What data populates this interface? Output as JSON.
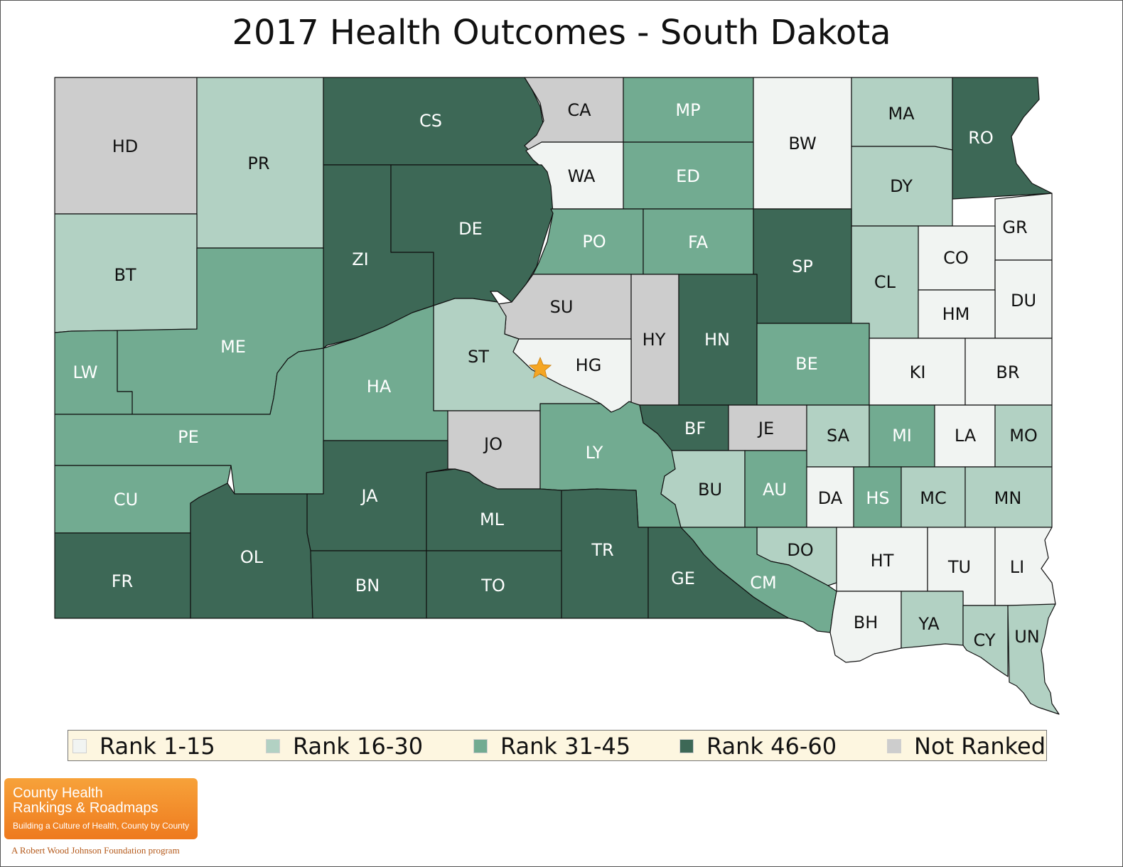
{
  "title": "2017 Health Outcomes - South Dakota",
  "colors": {
    "rank_1_15": "#f1f4f2",
    "rank_16_30": "#b2d1c3",
    "rank_31_45": "#72ab91",
    "rank_46_60": "#3d6856",
    "not_ranked": "#cdcdcd",
    "border": "#111111",
    "star": "#f5a623"
  },
  "legend": [
    {
      "key": "rank_1_15",
      "label": "Rank 1-15"
    },
    {
      "key": "rank_16_30",
      "label": "Rank 16-30"
    },
    {
      "key": "rank_31_45",
      "label": "Rank 31-45"
    },
    {
      "key": "rank_46_60",
      "label": "Rank 46-60"
    },
    {
      "key": "not_ranked",
      "label": "Not Ranked"
    }
  ],
  "counties": [
    {
      "code": "HD",
      "rank": "not_ranked"
    },
    {
      "code": "PR",
      "rank": "rank_16_30"
    },
    {
      "code": "CS",
      "rank": "rank_46_60"
    },
    {
      "code": "CA",
      "rank": "not_ranked"
    },
    {
      "code": "MP",
      "rank": "rank_31_45"
    },
    {
      "code": "BW",
      "rank": "rank_1_15"
    },
    {
      "code": "MA",
      "rank": "rank_16_30"
    },
    {
      "code": "RO",
      "rank": "rank_46_60"
    },
    {
      "code": "WA",
      "rank": "rank_1_15"
    },
    {
      "code": "ED",
      "rank": "rank_31_45"
    },
    {
      "code": "DY",
      "rank": "rank_16_30"
    },
    {
      "code": "BT",
      "rank": "rank_16_30"
    },
    {
      "code": "ZI",
      "rank": "rank_46_60"
    },
    {
      "code": "DE",
      "rank": "rank_46_60"
    },
    {
      "code": "PO",
      "rank": "rank_31_45"
    },
    {
      "code": "FA",
      "rank": "rank_31_45"
    },
    {
      "code": "SP",
      "rank": "rank_46_60"
    },
    {
      "code": "GR",
      "rank": "rank_1_15"
    },
    {
      "code": "CO",
      "rank": "rank_1_15"
    },
    {
      "code": "CL",
      "rank": "rank_16_30"
    },
    {
      "code": "DU",
      "rank": "rank_1_15"
    },
    {
      "code": "HM",
      "rank": "rank_1_15"
    },
    {
      "code": "SU",
      "rank": "not_ranked"
    },
    {
      "code": "HY",
      "rank": "not_ranked"
    },
    {
      "code": "HN",
      "rank": "rank_46_60"
    },
    {
      "code": "ME",
      "rank": "rank_31_45"
    },
    {
      "code": "LW",
      "rank": "rank_31_45"
    },
    {
      "code": "ST",
      "rank": "rank_16_30"
    },
    {
      "code": "HG",
      "rank": "rank_1_15"
    },
    {
      "code": "BE",
      "rank": "rank_31_45"
    },
    {
      "code": "KI",
      "rank": "rank_1_15"
    },
    {
      "code": "BR",
      "rank": "rank_1_15"
    },
    {
      "code": "HA",
      "rank": "rank_31_45"
    },
    {
      "code": "PE",
      "rank": "rank_31_45"
    },
    {
      "code": "JO",
      "rank": "not_ranked"
    },
    {
      "code": "LY",
      "rank": "rank_31_45"
    },
    {
      "code": "BF",
      "rank": "rank_46_60"
    },
    {
      "code": "JE",
      "rank": "not_ranked"
    },
    {
      "code": "SA",
      "rank": "rank_16_30"
    },
    {
      "code": "MI",
      "rank": "rank_31_45"
    },
    {
      "code": "LA",
      "rank": "rank_1_15"
    },
    {
      "code": "MO",
      "rank": "rank_16_30"
    },
    {
      "code": "CU",
      "rank": "rank_31_45"
    },
    {
      "code": "JA",
      "rank": "rank_46_60"
    },
    {
      "code": "BU",
      "rank": "rank_16_30"
    },
    {
      "code": "AU",
      "rank": "rank_31_45"
    },
    {
      "code": "DA",
      "rank": "rank_1_15"
    },
    {
      "code": "HS",
      "rank": "rank_31_45"
    },
    {
      "code": "MC",
      "rank": "rank_16_30"
    },
    {
      "code": "MN",
      "rank": "rank_16_30"
    },
    {
      "code": "ML",
      "rank": "rank_46_60"
    },
    {
      "code": "OL",
      "rank": "rank_46_60"
    },
    {
      "code": "TR",
      "rank": "rank_46_60"
    },
    {
      "code": "DO",
      "rank": "rank_16_30"
    },
    {
      "code": "HT",
      "rank": "rank_1_15"
    },
    {
      "code": "TU",
      "rank": "rank_1_15"
    },
    {
      "code": "LI",
      "rank": "rank_1_15"
    },
    {
      "code": "FR",
      "rank": "rank_46_60"
    },
    {
      "code": "BN",
      "rank": "rank_46_60"
    },
    {
      "code": "TO",
      "rank": "rank_46_60"
    },
    {
      "code": "GE",
      "rank": "rank_46_60"
    },
    {
      "code": "CM",
      "rank": "rank_31_45"
    },
    {
      "code": "BH",
      "rank": "rank_1_15"
    },
    {
      "code": "YA",
      "rank": "rank_16_30"
    },
    {
      "code": "CY",
      "rank": "rank_16_30"
    },
    {
      "code": "UN",
      "rank": "rank_16_30"
    }
  ],
  "capital_marker": "star-icon",
  "logo": {
    "line1": "County Health",
    "line2": "Rankings & Roadmaps",
    "tagline": "Building a Culture of Health, County by County"
  },
  "program_credit": "A Robert Wood Johnson Foundation program"
}
